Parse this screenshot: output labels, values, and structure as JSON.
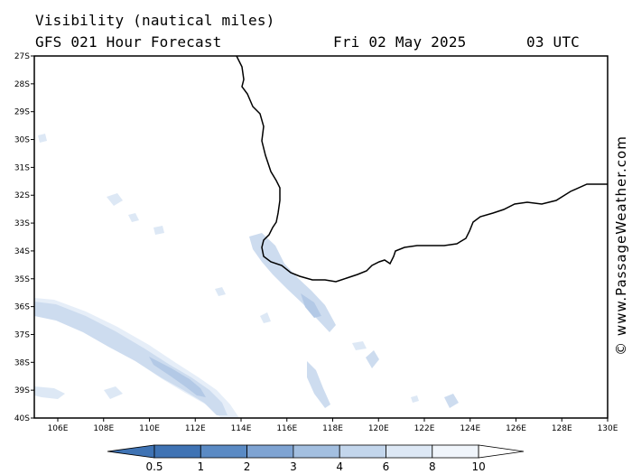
{
  "header": {
    "title": "Visibility (nautical miles)",
    "subtitle": "GFS 021 Hour Forecast",
    "date": "Fri 02 May 2025",
    "time": "03 UTC"
  },
  "map": {
    "lat_labels": [
      "27S",
      "28S",
      "29S",
      "30S",
      "31S",
      "32S",
      "33S",
      "34S",
      "35S",
      "36S",
      "37S",
      "38S",
      "39S",
      "40S"
    ],
    "lon_labels": [
      "106E",
      "108E",
      "110E",
      "112E",
      "114E",
      "116E",
      "118E",
      "120E",
      "122E",
      "124E",
      "126E",
      "128E",
      "130E"
    ],
    "coastline_color": "#000000"
  },
  "scale": {
    "labels": [
      "0.5",
      "1",
      "2",
      "3",
      "4",
      "6",
      "8",
      "10"
    ],
    "colors": [
      "#3f73b4",
      "#5a8ac4",
      "#7ea3d2",
      "#a3bfe0",
      "#c3d6ec",
      "#dde8f5",
      "#f0f5fb"
    ]
  },
  "credit": "© www.PassageWeather.com"
}
